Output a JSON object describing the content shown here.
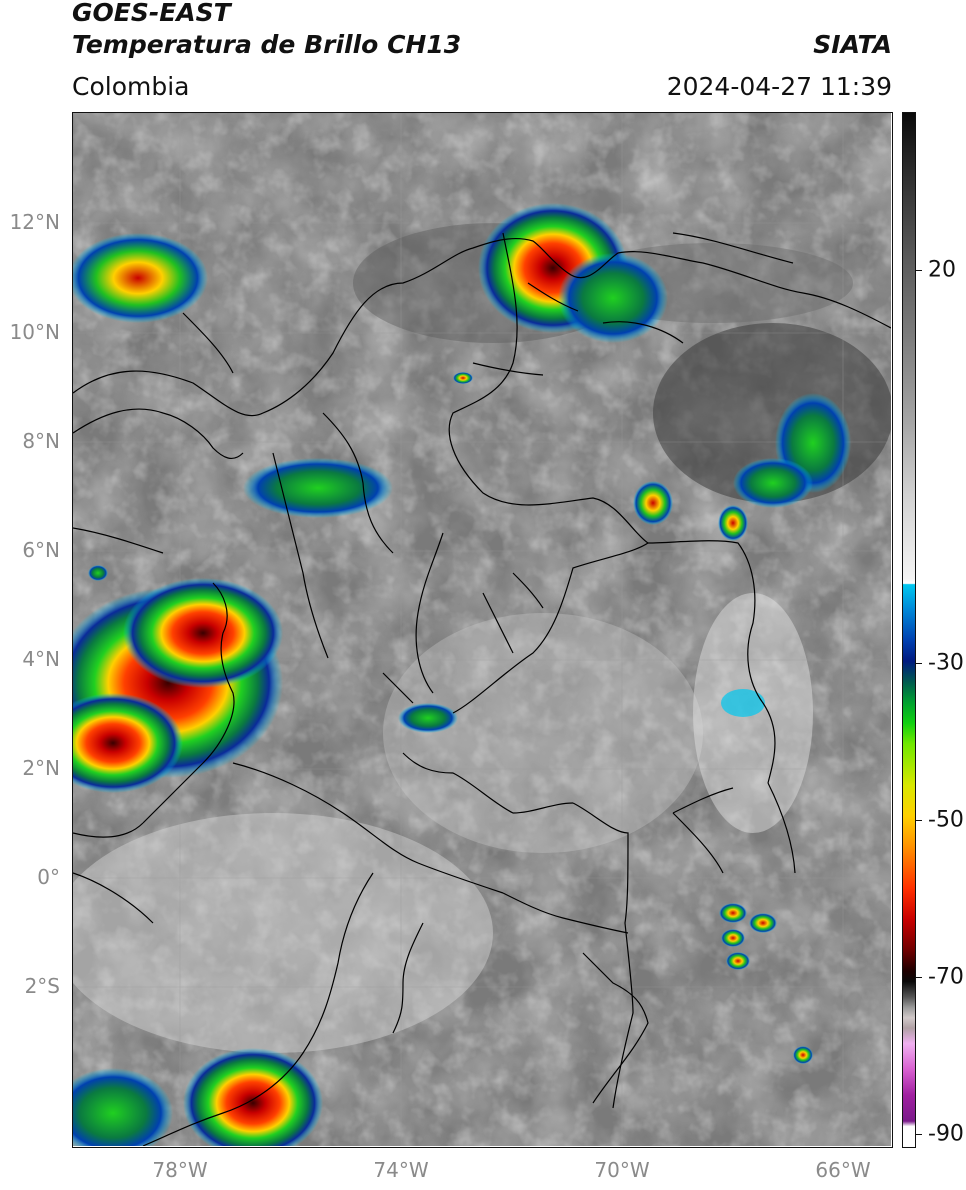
{
  "header": {
    "satellite": "GOES-EAST",
    "product": "Temperatura de Brillo CH13",
    "brand": "SIATA",
    "region": "Colombia",
    "timestamp": "2024-04-27 11:39"
  },
  "map_axes": {
    "lat_ticks": [
      "12°N",
      "10°N",
      "8°N",
      "6°N",
      "4°N",
      "2°N",
      "0°",
      "2°S"
    ],
    "lon_ticks": [
      "78°W",
      "74°W",
      "70°W",
      "66°W"
    ]
  },
  "colorbar": {
    "labels": [
      "20",
      "-30",
      "-50",
      "-70",
      "-90"
    ],
    "units_shown": false
  },
  "colors": {
    "cold_cloud_red": "#c80000",
    "cold_cloud_yellow": "#ffd000",
    "cold_cloud_green": "#10d010",
    "cold_cloud_blue": "#0040b0",
    "cold_cloud_cyan": "#00c8f0",
    "borders": "#000000"
  }
}
